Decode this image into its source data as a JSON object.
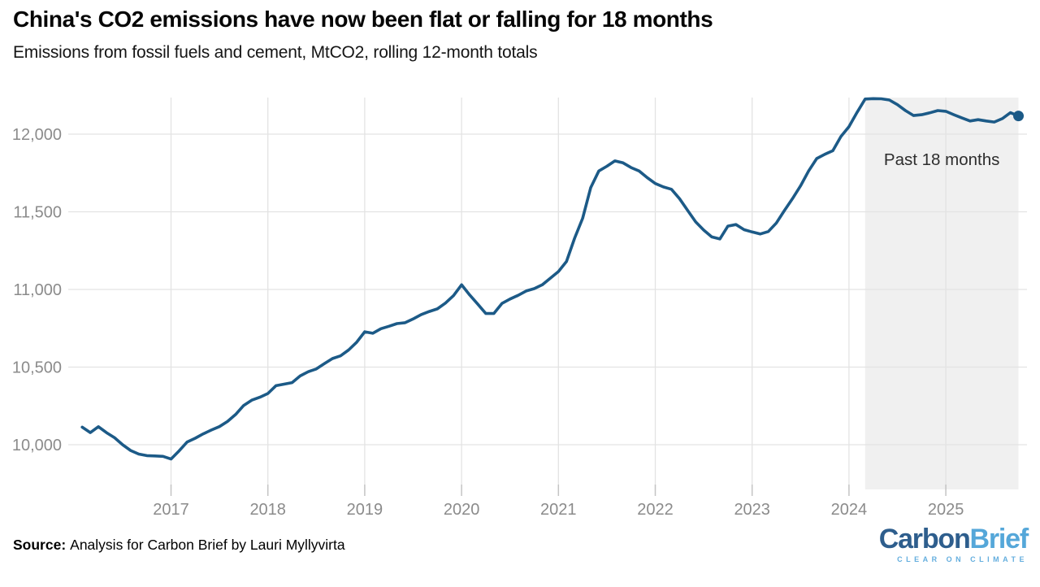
{
  "header": {
    "title": "China's CO2 emissions have now been flat or falling for 18 months",
    "subtitle": "Emissions from fossil fuels and cement, MtCO2, rolling 12-month totals"
  },
  "chart_data": {
    "type": "line",
    "title": "China's CO2 emissions have now been flat or falling for 18 months",
    "xlabel": "",
    "ylabel": "",
    "unit": "MtCO2",
    "grid": true,
    "legend": "none",
    "xlim": [
      2015.95,
      2025.85
    ],
    "ylim": [
      9712,
      12236
    ],
    "x_ticks": [
      2017,
      2018,
      2019,
      2020,
      2021,
      2022,
      2023,
      2024,
      2025
    ],
    "x_tick_labels": [
      "2017",
      "2018",
      "2019",
      "2020",
      "2021",
      "2022",
      "2023",
      "2024",
      "2025"
    ],
    "y_ticks": [
      10000,
      10500,
      11000,
      11500,
      12000
    ],
    "y_tick_labels": [
      "10,000",
      "10,500",
      "11,000",
      "11,500",
      "12,000"
    ],
    "line_color": "#1c5a87",
    "shade_color": "#f0f0f0",
    "annotation": {
      "label": "Past 18 months",
      "region_start": "2024-03",
      "region_end": "2025-10"
    },
    "end_dot": true,
    "series": [
      {
        "name": "China CO2 emissions, rolling 12-month total (MtCO2)",
        "start": "2016-02",
        "frequency": "monthly",
        "values": [
          10113,
          10078,
          10116,
          10078,
          10045,
          10000,
          9963,
          9940,
          9930,
          9928,
          9925,
          9908,
          9960,
          10018,
          10042,
          10070,
          10095,
          10117,
          10150,
          10195,
          10253,
          10287,
          10306,
          10330,
          10380,
          10390,
          10400,
          10443,
          10470,
          10488,
          10522,
          10555,
          10572,
          10610,
          10660,
          10727,
          10718,
          10747,
          10763,
          10780,
          10786,
          10810,
          10838,
          10858,
          10875,
          10912,
          10960,
          11030,
          10965,
          10905,
          10845,
          10845,
          10910,
          10938,
          10962,
          10990,
          11005,
          11030,
          11073,
          11115,
          11180,
          11330,
          11458,
          11655,
          11763,
          11793,
          11828,
          11815,
          11785,
          11763,
          11720,
          11682,
          11660,
          11645,
          11585,
          11510,
          11435,
          11382,
          11338,
          11325,
          11408,
          11418,
          11385,
          11370,
          11357,
          11373,
          11428,
          11508,
          11585,
          11667,
          11763,
          11843,
          11870,
          11893,
          11985,
          12048,
          12140,
          12226,
          12229,
          12228,
          12220,
          12190,
          12152,
          12120,
          12125,
          12137,
          12152,
          12147,
          12125,
          12104,
          12085,
          12093,
          12085,
          12078,
          12100,
          12138,
          12117
        ]
      }
    ]
  },
  "footer": {
    "source_label": "Source:",
    "source_text": "Analysis for Carbon Brief by Lauri Myllyvirta",
    "logo": {
      "part1": "Carbon",
      "part2": "Brief",
      "tagline": "CLEAR ON CLIMATE",
      "color_part1": "#2e5e8d",
      "color_part2": "#55a7d9",
      "color_tagline": "#64aede"
    }
  },
  "style_colors": {
    "gridline": "#e3e3e3",
    "tick": "#c4c4c4",
    "axis_label": "#8b8b8b",
    "annotation_text": "#2d2d2d"
  }
}
